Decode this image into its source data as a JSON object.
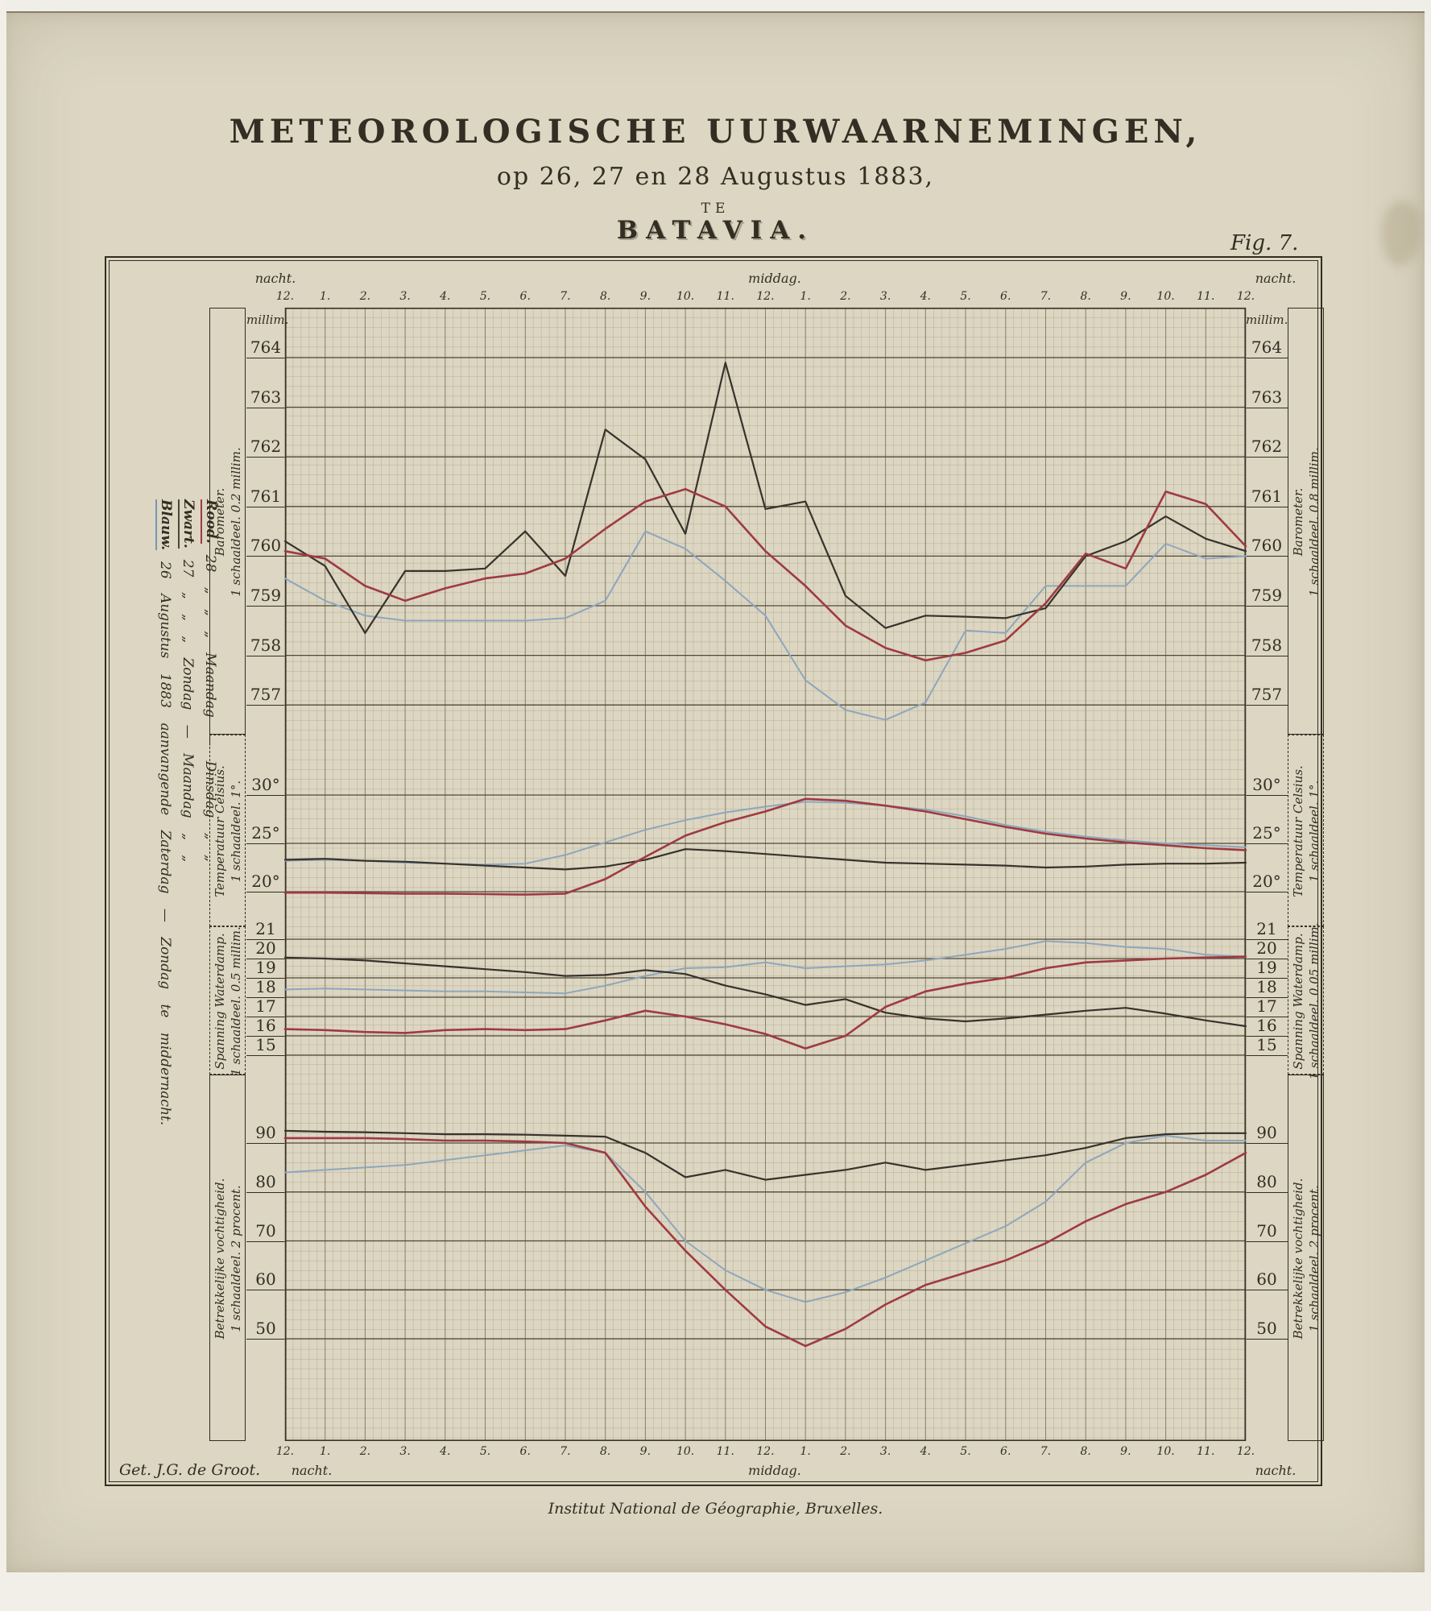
{
  "title": {
    "line1": "METEOROLOGISCHE  UURWAARNEMINGEN,",
    "line2": "op 26, 27 en 28 Augustus 1883,",
    "line3": "TE",
    "line4": "BATAVIA.",
    "fig": "Fig. 7."
  },
  "credits": {
    "engraver": "Get. J.G. de Groot.",
    "publisher": "Institut National de Géographie, Bruxelles."
  },
  "legend": {
    "lines": [
      {
        "word": "Blauw.",
        "color": "#7796b5",
        "text": "26  Augustus  1883  aanvangende  Zaterdag — Zondag  te  middernacht."
      },
      {
        "word": "Zwart.",
        "color": "#4b463c",
        "text": "27  „  „  „  Zondag — Maandag  „  „"
      },
      {
        "word": "Rood.",
        "color": "#9f3a41",
        "text": "28  „  „  „  Maandag — Dinsdag  „  „"
      }
    ]
  },
  "time_axis": {
    "hours": [
      "12.",
      "1.",
      "2.",
      "3.",
      "4.",
      "5.",
      "6.",
      "7.",
      "8.",
      "9.",
      "10.",
      "11.",
      "12.",
      "1.",
      "2.",
      "3.",
      "4.",
      "5.",
      "6.",
      "7.",
      "8.",
      "9.",
      "10.",
      "11.",
      "12."
    ],
    "top": {
      "left": "nacht.",
      "center": "middag.",
      "right": "nacht."
    },
    "bottom": {
      "left": "nacht.",
      "center": "middag.",
      "right": "nacht."
    }
  },
  "panels": [
    {
      "key": "barometer",
      "label": "Barometer.",
      "scale_left": "1 schaaldeel. 0.2 millim.",
      "scale_right": "1 schaaldeel. 0.8 millim.",
      "unit_left": "millim.",
      "unit_right": "millim.",
      "ticks_display": [
        "764",
        "763",
        "762",
        "761",
        "760",
        "759",
        "758",
        "757"
      ]
    },
    {
      "key": "temperature",
      "label": "Temperatuur Celsius.",
      "scale_left": "1 schaaldeel. 1°.",
      "scale_right": "1 schaaldeel. 1°.",
      "unit_left": "",
      "unit_right": "",
      "ticks_display": [
        "30°",
        "25°",
        "20°"
      ]
    },
    {
      "key": "vapour",
      "label": "Spanning Waterdamp.",
      "scale_left": "1 schaaldeel. 0.5 millim.",
      "scale_right": "1 schaaldeel. 0.05 millim.",
      "unit_left": "",
      "unit_right": "",
      "ticks_display": [
        "21",
        "20",
        "19",
        "18",
        "17",
        "16",
        "15"
      ]
    },
    {
      "key": "humidity",
      "label": "Betrekkelijke vochtigheid.",
      "scale_left": "1 schaaldeel. 2 procent.",
      "scale_right": "1 schaaldeel. 2 procent.",
      "unit_left": "",
      "unit_right": "",
      "ticks_display": [
        "90",
        "80",
        "70",
        "60",
        "50"
      ]
    }
  ],
  "chart_data": [
    {
      "type": "line",
      "title": "Barometer (millim.)",
      "ylabel": "millim.",
      "ylim": [
        757,
        764
      ],
      "x_note": "25 hourly points: 12 nacht … 12 middag … 12 nacht",
      "series": [
        {
          "name": "26 Augustus (blauw)",
          "color": "#8ea6bd",
          "values": [
            759.55,
            759.1,
            758.8,
            758.7,
            758.7,
            758.7,
            758.7,
            758.75,
            759.1,
            760.5,
            760.15,
            759.5,
            758.8,
            757.5,
            756.9,
            756.7,
            757.05,
            758.5,
            758.45,
            759.4,
            759.4,
            759.4,
            760.25,
            759.95,
            760.0
          ]
        },
        {
          "name": "27 Augustus (zwart)",
          "color": "#37322b",
          "values": [
            760.3,
            759.8,
            758.45,
            759.7,
            759.7,
            759.75,
            760.5,
            759.6,
            762.55,
            761.95,
            760.45,
            763.9,
            760.95,
            761.1,
            759.2,
            758.55,
            758.8,
            758.78,
            758.75,
            758.95,
            760.0,
            760.3,
            760.8,
            760.35,
            760.1
          ]
        },
        {
          "name": "28 Augustus (rood)",
          "color": "#9f3a41",
          "values": [
            760.1,
            759.95,
            759.4,
            759.1,
            759.35,
            759.55,
            759.65,
            759.95,
            760.55,
            761.1,
            761.35,
            761.0,
            760.1,
            759.4,
            758.6,
            758.15,
            757.9,
            758.05,
            758.3,
            759.05,
            760.05,
            759.75,
            761.3,
            761.05,
            760.2
          ]
        }
      ]
    },
    {
      "type": "line",
      "title": "Temperatuur Celsius",
      "ylabel": "°C",
      "ylim": [
        18,
        31
      ],
      "x_note": "25 hourly points: 12 nacht … 12 middag … 12 nacht",
      "series": [
        {
          "name": "26 Augustus (blauw)",
          "color": "#8ea6bd",
          "values": [
            23.2,
            23.3,
            23.2,
            23.0,
            22.9,
            22.8,
            22.9,
            23.8,
            25.1,
            26.4,
            27.4,
            28.2,
            28.8,
            29.3,
            29.2,
            28.9,
            28.5,
            27.8,
            26.9,
            26.2,
            25.7,
            25.3,
            25.0,
            24.8,
            24.6
          ]
        },
        {
          "name": "27 Augustus (zwart)",
          "color": "#37322b",
          "values": [
            23.3,
            23.4,
            23.2,
            23.1,
            22.9,
            22.7,
            22.5,
            22.3,
            22.6,
            23.3,
            24.4,
            24.2,
            23.9,
            23.6,
            23.3,
            23.0,
            22.9,
            22.8,
            22.7,
            22.5,
            22.6,
            22.8,
            22.9,
            22.9,
            23.0
          ]
        },
        {
          "name": "28 Augustus (rood)",
          "color": "#9f3a41",
          "values": [
            19.9,
            19.9,
            19.85,
            19.8,
            19.8,
            19.75,
            19.7,
            19.8,
            21.3,
            23.6,
            25.8,
            27.2,
            28.3,
            29.6,
            29.4,
            28.9,
            28.3,
            27.5,
            26.7,
            26.0,
            25.5,
            25.1,
            24.8,
            24.5,
            24.3
          ]
        }
      ]
    },
    {
      "type": "line",
      "title": "Spanning Waterdamp (millim.)",
      "ylabel": "millim.",
      "ylim": [
        15,
        21
      ],
      "x_note": "25 hourly points: 12 nacht … 12 middag … 12 nacht",
      "series": [
        {
          "name": "26 Augustus (blauw)",
          "color": "#8ea6bd",
          "values": [
            18.4,
            18.45,
            18.4,
            18.35,
            18.3,
            18.3,
            18.25,
            18.2,
            18.6,
            19.1,
            19.5,
            19.55,
            19.8,
            19.5,
            19.6,
            19.7,
            19.9,
            20.2,
            20.5,
            20.9,
            20.8,
            20.6,
            20.5,
            20.2,
            20.1
          ]
        },
        {
          "name": "27 Augustus (zwart)",
          "color": "#37322b",
          "values": [
            20.05,
            20.0,
            19.9,
            19.75,
            19.6,
            19.45,
            19.3,
            19.1,
            19.15,
            19.4,
            19.2,
            18.6,
            18.15,
            17.6,
            17.9,
            17.2,
            16.9,
            16.75,
            16.9,
            17.1,
            17.3,
            17.45,
            17.15,
            16.8,
            16.5
          ]
        },
        {
          "name": "28 Augustus (rood)",
          "color": "#9f3a41",
          "values": [
            16.35,
            16.3,
            16.2,
            16.15,
            16.3,
            16.35,
            16.3,
            16.35,
            16.8,
            17.3,
            17.0,
            16.6,
            16.1,
            15.35,
            16.0,
            17.5,
            18.3,
            18.7,
            19.0,
            19.5,
            19.8,
            19.9,
            20.0,
            20.05,
            20.1
          ]
        }
      ]
    },
    {
      "type": "line",
      "title": "Betrekkelijke vochtigheid (procent)",
      "ylabel": "procent",
      "ylim": [
        45,
        95
      ],
      "x_note": "25 hourly points: 12 nacht … 12 middag … 12 nacht",
      "series": [
        {
          "name": "26 Augustus (blauw)",
          "color": "#8ea6bd",
          "values": [
            84.0,
            84.5,
            85.0,
            85.5,
            86.5,
            87.5,
            88.5,
            89.5,
            88.0,
            80.0,
            70.0,
            64.0,
            60.0,
            57.5,
            59.5,
            62.5,
            66.0,
            69.5,
            73.0,
            78.0,
            86.0,
            90.0,
            91.5,
            90.5,
            90.5
          ]
        },
        {
          "name": "27 Augustus (zwart)",
          "color": "#37322b",
          "values": [
            92.5,
            92.3,
            92.2,
            92.0,
            91.8,
            91.8,
            91.7,
            91.5,
            91.3,
            88.0,
            83.0,
            84.5,
            82.5,
            83.5,
            84.5,
            86.0,
            84.5,
            85.5,
            86.5,
            87.5,
            89.0,
            91.0,
            91.8,
            92.0,
            92.0
          ]
        },
        {
          "name": "28 Augustus (rood)",
          "color": "#9f3a41",
          "values": [
            91.0,
            91.0,
            91.0,
            90.8,
            90.5,
            90.5,
            90.3,
            90.0,
            88.0,
            77.0,
            68.0,
            60.0,
            52.5,
            48.5,
            52.0,
            57.0,
            61.0,
            63.5,
            66.0,
            69.5,
            74.0,
            77.5,
            80.0,
            83.5,
            88.0
          ]
        }
      ]
    }
  ]
}
